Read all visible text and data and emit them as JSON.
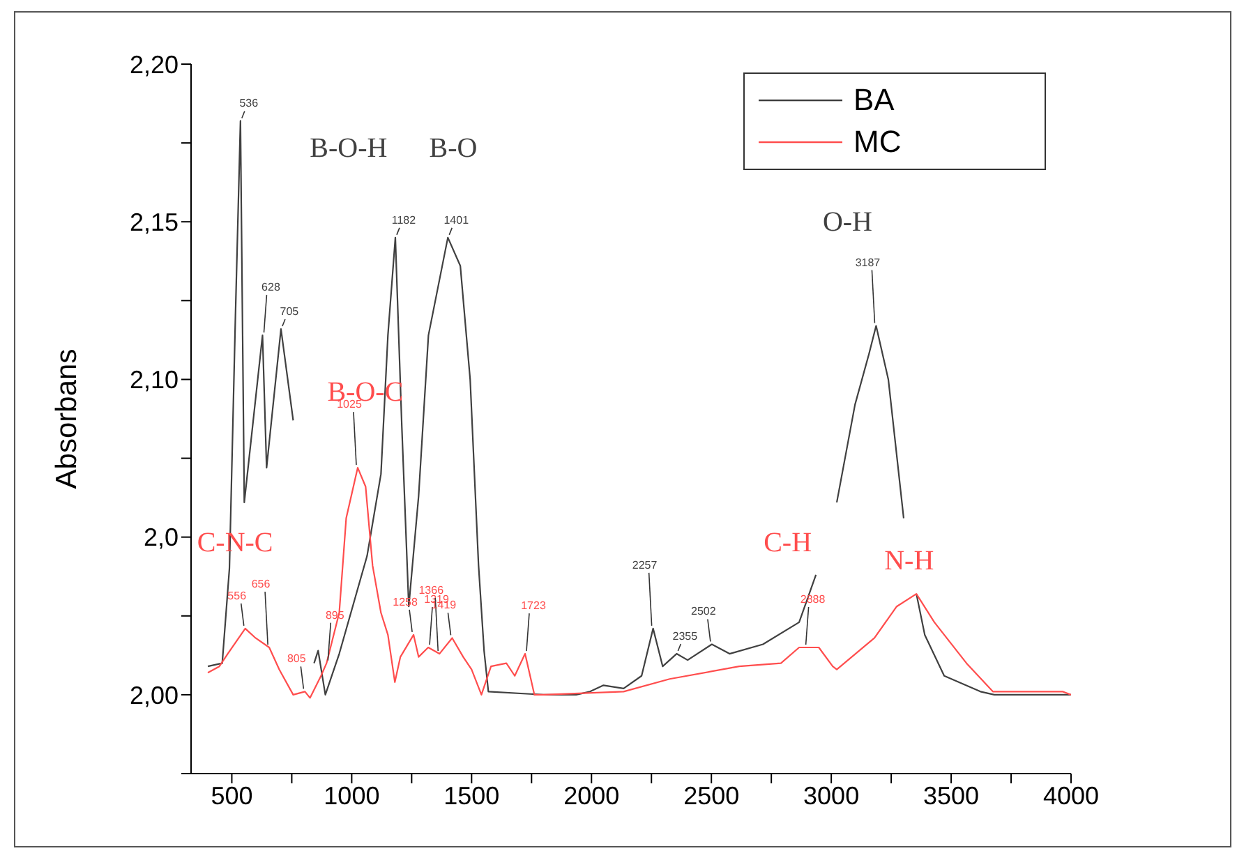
{
  "chart_data": {
    "type": "line",
    "ylabel": "Absorbans",
    "xlim": [
      330,
      4000
    ],
    "xticks": [
      500,
      {
        "value": 750,
        "label": null
      },
      1000,
      {
        "value": 1250,
        "label": null
      },
      1500,
      {
        "value": 1750,
        "label": null
      },
      2000,
      {
        "value": 2250,
        "label": null
      },
      2500,
      {
        "value": 2750,
        "label": null
      },
      3000,
      {
        "value": 3250,
        "label": null
      },
      3500,
      {
        "value": 3750,
        "label": null
      },
      4000
    ],
    "ylim": [
      1.975,
      2.2
    ],
    "yticks": [
      {
        "value": 1.975,
        "label": null
      },
      {
        "value": 2.0,
        "label": "2,00"
      },
      {
        "value": 2.025,
        "label": null
      },
      {
        "value": 2.05,
        "label": "2,0"
      },
      {
        "value": 2.075,
        "label": null
      },
      {
        "value": 2.1,
        "label": "2,10"
      },
      {
        "value": 2.125,
        "label": null
      },
      {
        "value": 2.15,
        "label": "2,15"
      },
      {
        "value": 2.175,
        "label": null
      },
      {
        "value": 2.2,
        "label": "2,20"
      }
    ],
    "grid": false,
    "legend": "top right",
    "marker": "none",
    "line_style": "solid",
    "series": [
      {
        "name": "BA",
        "color": "#404040",
        "x": [
          400,
          460,
          490,
          515,
          536,
          552,
          628,
          645,
          705,
          756,
          780,
          843,
          860,
          890,
          948,
          1064,
          1122,
          1151,
          1182,
          1209,
          1238,
          1279,
          1320,
          1401,
          1453,
          1494,
          1529,
          1552,
          1570,
          1800,
          1936,
          1994,
          2050,
          2134,
          2209,
          2257,
          2297,
          2355,
          2401,
          2502,
          2576,
          2715,
          2866,
          2936,
          2980,
          3023,
          3099,
          3157,
          3187,
          3238,
          3302,
          3330,
          3355,
          3390,
          3471,
          3622,
          3680,
          3971,
          4000
        ],
        "values": [
          2.009,
          2.01,
          2.04,
          2.12,
          2.182,
          2.061,
          2.114,
          2.072,
          2.116,
          2.087,
          null,
          2.01,
          2.014,
          2.0,
          2.013,
          2.044,
          2.07,
          2.114,
          2.145,
          2.085,
          2.028,
          2.063,
          2.114,
          2.145,
          2.136,
          2.1,
          2.041,
          2.014,
          2.001,
          2.0,
          2.0,
          2.001,
          2.003,
          2.002,
          2.006,
          2.021,
          2.009,
          2.013,
          2.011,
          2.016,
          2.013,
          2.016,
          2.023,
          2.038,
          null,
          2.061,
          2.092,
          2.108,
          2.117,
          2.1,
          2.056,
          null,
          2.032,
          2.019,
          2.006,
          2.001,
          2.0,
          2.0,
          2.0
        ]
      },
      {
        "name": "MC",
        "color": "#ff4d4d",
        "x": [
          400,
          448,
          483,
          556,
          599,
          656,
          698,
          756,
          805,
          826,
          872,
          895,
          948,
          977,
          1025,
          1058,
          1087,
          1122,
          1151,
          1180,
          1203,
          1258,
          1279,
          1319,
          1366,
          1419,
          1465,
          1500,
          1541,
          1581,
          1645,
          1680,
          1723,
          1762,
          1800,
          2134,
          2326,
          2616,
          2790,
          2866,
          2888,
          2948,
          3006,
          3023,
          3180,
          3273,
          3355,
          3430,
          3564,
          3674,
          3965,
          4000
        ],
        "values": [
          2.007,
          2.009,
          2.013,
          2.021,
          2.018,
          2.015,
          2.008,
          2.0,
          2.001,
          1.999,
          2.006,
          2.01,
          2.026,
          2.056,
          2.072,
          2.066,
          2.041,
          2.026,
          2.019,
          2.004,
          2.012,
          2.019,
          2.012,
          2.015,
          2.013,
          2.018,
          2.012,
          2.008,
          2.0,
          2.009,
          2.01,
          2.006,
          2.013,
          2.0,
          2.0,
          2.001,
          2.005,
          2.009,
          2.01,
          2.015,
          2.015,
          2.015,
          2.009,
          2.008,
          2.018,
          2.028,
          2.032,
          2.023,
          2.01,
          2.001,
          2.001,
          2.0
        ]
      }
    ],
    "annotations": [
      {
        "text": "536",
        "x": 536,
        "y": 2.182
      },
      {
        "text": "556",
        "x": 556,
        "y": 2.021
      },
      {
        "text": "628",
        "x": 628,
        "y": 2.114
      },
      {
        "text": "656",
        "x": 656,
        "y": 2.015
      },
      {
        "text": "705",
        "x": 705,
        "y": 2.116
      },
      {
        "text": "805",
        "x": 805,
        "y": 2.001
      },
      {
        "text": "895",
        "x": 895,
        "y": 2.01
      },
      {
        "text": "1025",
        "x": 1025,
        "y": 2.072
      },
      {
        "text": "1182",
        "x": 1182,
        "y": 2.145
      },
      {
        "text": "1258",
        "x": 1258,
        "y": 2.019
      },
      {
        "text": "1319",
        "x": 1319,
        "y": 2.015
      },
      {
        "text": "1366",
        "x": 1366,
        "y": 2.013
      },
      {
        "text": "1401",
        "x": 1401,
        "y": 2.145
      },
      {
        "text": "1419",
        "x": 1419,
        "y": 2.018
      },
      {
        "text": "1723",
        "x": 1723,
        "y": 2.013
      },
      {
        "text": "2257",
        "x": 2257,
        "y": 2.021
      },
      {
        "text": "2355",
        "x": 2355,
        "y": 2.013
      },
      {
        "text": "2502",
        "x": 2502,
        "y": 2.016
      },
      {
        "text": "2888",
        "x": 2888,
        "y": 2.015
      },
      {
        "text": "3187",
        "x": 3187,
        "y": 2.117
      },
      "B-O-H",
      "B-O",
      "O-H",
      "B-O-C",
      "C-N-C",
      "C-H",
      "N-H"
    ]
  }
}
